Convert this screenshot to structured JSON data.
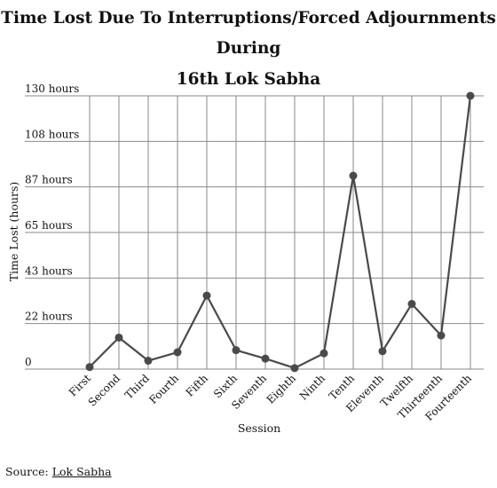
{
  "chart_data": {
    "type": "line",
    "title_line1": "Time Lost Due To Interruptions/Forced Adjournments During",
    "title_line2": "16th Lok Sabha",
    "xlabel": "Session",
    "ylabel": "Time Lost (hours)",
    "categories": [
      "First",
      "Second",
      "Third",
      "Fourth",
      "Fifth",
      "Sixth",
      "Seventh",
      "Eighth",
      "Ninth",
      "Tenth",
      "Eleventh",
      "Twelfth",
      "Thirteenth",
      "Fourteenth"
    ],
    "values": [
      1,
      15,
      4,
      8,
      35,
      9,
      5,
      0.5,
      7.5,
      92,
      8.5,
      31,
      16,
      130
    ],
    "y_ticks": [
      {
        "value": 0,
        "label": "0"
      },
      {
        "value": 21.67,
        "label": "22 hours"
      },
      {
        "value": 43.33,
        "label": "43 hours"
      },
      {
        "value": 65,
        "label": "65 hours"
      },
      {
        "value": 86.67,
        "label": "87 hours"
      },
      {
        "value": 108.33,
        "label": "108 hours"
      },
      {
        "value": 130,
        "label": "130 hours"
      }
    ],
    "ylim": [
      0,
      130
    ],
    "grid": true,
    "line_color": "#4a4a4a",
    "grid_color": "#8a8a8a"
  },
  "source": {
    "prefix": "Source: ",
    "link_text": "Lok Sabha"
  }
}
